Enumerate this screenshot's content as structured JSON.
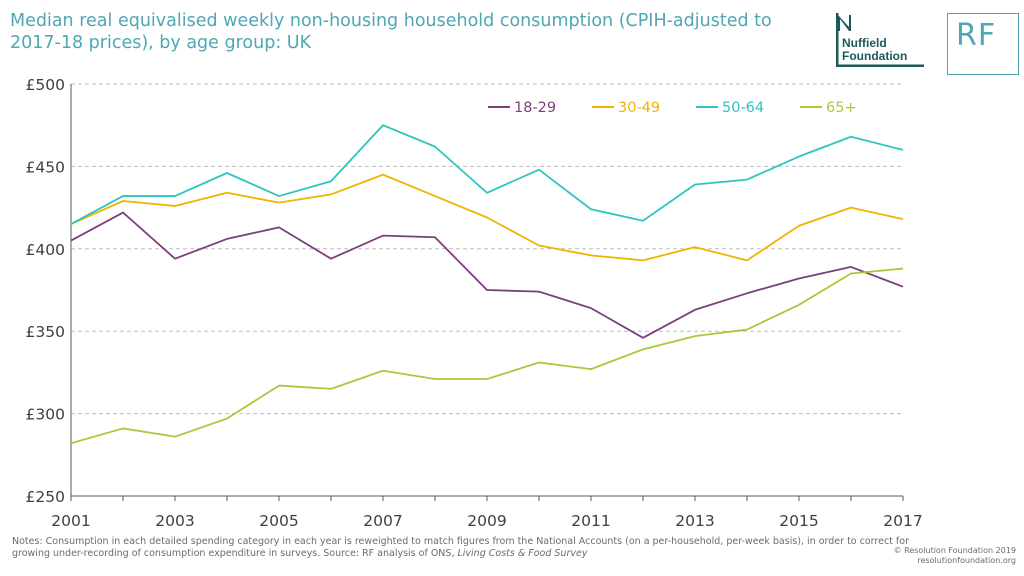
{
  "header": {
    "title": "Median real equivalised weekly non-housing household consumption (CPIH-adjusted to 2017-18 prices), by age group: UK"
  },
  "logos": {
    "nuffield": {
      "line1": "Nuffield",
      "line2": "Foundation",
      "icon": "nuffield-foundation-logo"
    },
    "rf": {
      "text": "RF",
      "icon": "resolution-foundation-logo"
    }
  },
  "footer": {
    "notes_prefix": "Notes: Consumption in each detailed spending category in each year is reweighted to match figures from the National Accounts (on a per-household, per-week basis), in order to correct for growing under-recording of consumption expenditure in surveys. Source: RF analysis of ONS, ",
    "notes_source": "Living Costs & Food Survey",
    "copyright_line1": "© Resolution Foundation 2019",
    "copyright_line2": "resolutionfoundation.org"
  },
  "colors": {
    "title": "#4fa6b5",
    "grid": "#bdbdbd",
    "axis": "#595959"
  },
  "chart_data": {
    "type": "line",
    "title": "Median real equivalised weekly non-housing household consumption (CPIH-adjusted to 2017-18 prices), by age group: UK",
    "xlabel": "",
    "ylabel": "",
    "x": [
      2001,
      2002,
      2003,
      2004,
      2005,
      2006,
      2007,
      2008,
      2009,
      2010,
      2011,
      2012,
      2013,
      2014,
      2015,
      2016,
      2017
    ],
    "x_tick_labels": [
      "2001",
      "2003",
      "2005",
      "2007",
      "2009",
      "2011",
      "2013",
      "2015",
      "2017"
    ],
    "x_tick_values": [
      2001,
      2003,
      2005,
      2007,
      2009,
      2011,
      2013,
      2015,
      2017
    ],
    "y_tick_labels": [
      "£250",
      "£300",
      "£350",
      "£400",
      "£450",
      "£500"
    ],
    "y_tick_values": [
      250,
      300,
      350,
      400,
      450,
      500
    ],
    "ylim": [
      250,
      500
    ],
    "xlim": [
      2001,
      2017
    ],
    "grid": "horizontal dashed",
    "legend_placement": "top-right",
    "series": [
      {
        "name": "18-29",
        "color": "#7b3f7d",
        "values": [
          405,
          422,
          394,
          406,
          413,
          394,
          408,
          407,
          375,
          374,
          364,
          346,
          363,
          373,
          382,
          389,
          377
        ]
      },
      {
        "name": "30-49",
        "color": "#f0b400",
        "values": [
          415,
          429,
          426,
          434,
          428,
          433,
          445,
          432,
          419,
          402,
          396,
          393,
          401,
          393,
          414,
          425,
          418
        ]
      },
      {
        "name": "50-64",
        "color": "#2ec4c0",
        "values": [
          415,
          432,
          432,
          446,
          432,
          441,
          475,
          462,
          434,
          448,
          424,
          417,
          439,
          442,
          456,
          468,
          460
        ]
      },
      {
        "name": "65+",
        "color": "#a9c93a",
        "values": [
          282,
          291,
          286,
          297,
          317,
          315,
          326,
          321,
          321,
          331,
          327,
          339,
          347,
          351,
          366,
          385,
          388
        ]
      }
    ]
  }
}
